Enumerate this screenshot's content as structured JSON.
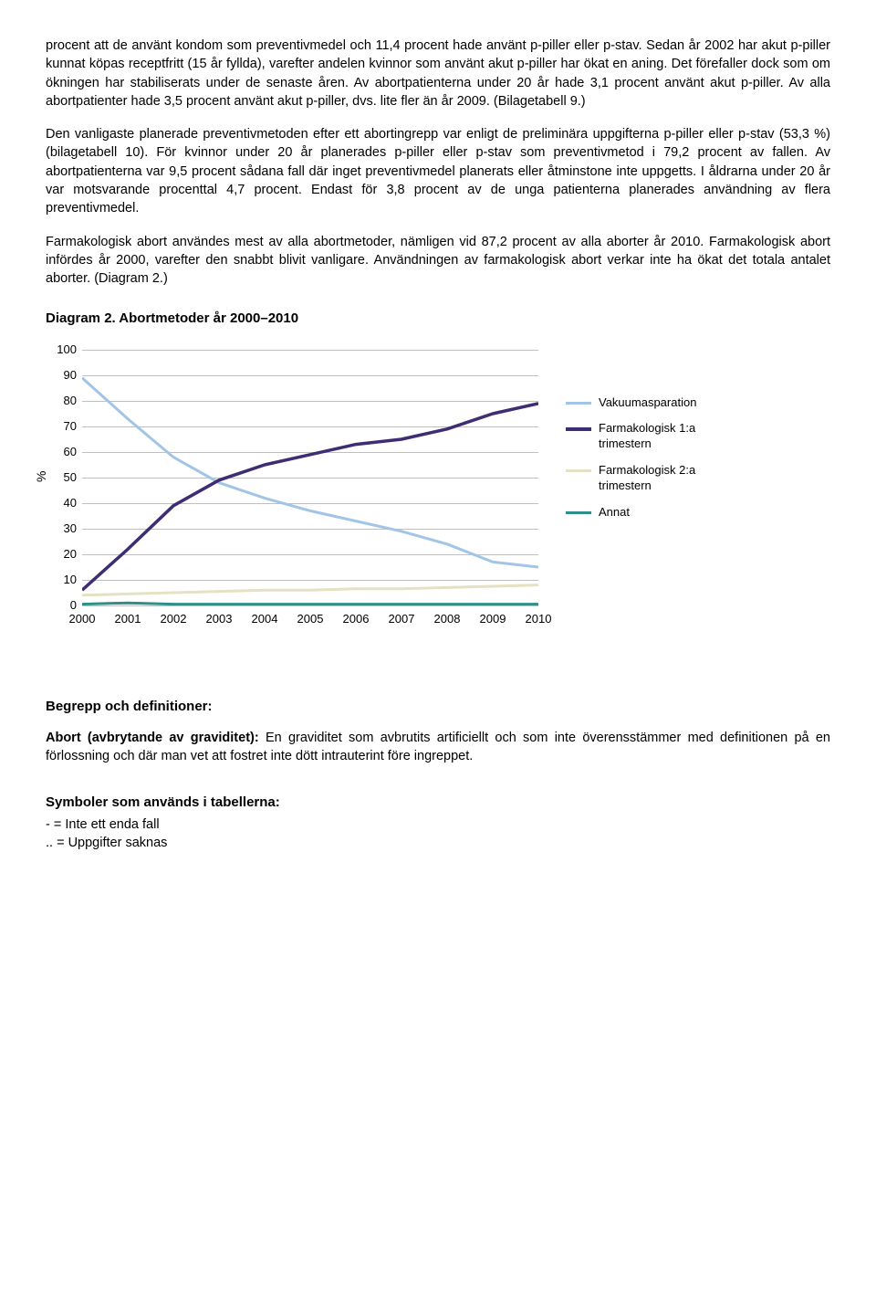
{
  "para1": "procent att de använt kondom som preventivmedel och 11,4 procent hade använt p-piller eller p-stav. Sedan år 2002 har akut p-piller kunnat köpas receptfritt (15 år fyllda), varefter andelen kvinnor som använt akut p-piller har ökat en aning. Det förefaller dock som om ökningen har stabiliserats under de senaste åren. Av abortpatienterna under 20 år hade 3,1 procent använt akut p-piller. Av alla abortpatienter hade 3,5 procent använt akut p-piller, dvs. lite fler än år 2009. (Bilagetabell 9.)",
  "para2": "Den vanligaste planerade preventivmetoden efter ett abortingrepp var enligt de preliminära uppgifterna p-piller eller p-stav (53,3 %) (bilagetabell 10). För kvinnor under 20 år planerades p-piller eller p-stav som preventivmetod i 79,2 procent av fallen. Av abortpatienterna var 9,5 procent sådana fall där inget preventivmedel planerats eller åtminstone inte uppgetts. I åldrarna under 20 år var motsvarande procenttal 4,7 procent. Endast för 3,8 procent av de unga patienterna planerades användning av flera preventivmedel.",
  "para3": "Farmakologisk abort användes mest av alla abortmetoder, nämligen vid 87,2 procent av alla aborter år 2010. Farmakologisk abort infördes år 2000, varefter den snabbt blivit vanligare. Användningen av farmakologisk abort verkar inte ha ökat det totala antalet aborter. (Diagram 2.)",
  "chart_title": "Diagram 2. Abortmetoder år 2000–2010",
  "chart": {
    "type": "line",
    "years": [
      "2000",
      "2001",
      "2002",
      "2003",
      "2004",
      "2005",
      "2006",
      "2007",
      "2008",
      "2009",
      "2010"
    ],
    "ylim": [
      0,
      100
    ],
    "ytick_step": 10,
    "ylabel": "%",
    "grid_color": "#bfbfbf",
    "series": [
      {
        "name": "Vakuumasparation",
        "color": "#a2c4e6",
        "width": 3,
        "values": [
          89,
          73,
          58,
          48,
          42,
          37,
          33,
          29,
          24,
          17,
          15
        ]
      },
      {
        "name": "Farmakologisk 1:a trimestern",
        "color": "#3e2d73",
        "width": 3.5,
        "values": [
          6,
          22,
          39,
          49,
          55,
          59,
          63,
          65,
          69,
          75,
          79
        ]
      },
      {
        "name": "Farmakologisk 2:a trimestern",
        "color": "#e4e2c3",
        "width": 3,
        "values": [
          4,
          4.5,
          5,
          5.5,
          6,
          6,
          6.5,
          6.5,
          7,
          7.5,
          8
        ]
      },
      {
        "name": "Annat",
        "color": "#2f8e8a",
        "width": 3,
        "values": [
          0.5,
          1,
          0.5,
          0.5,
          0.5,
          0.5,
          0.5,
          0.5,
          0.5,
          0.5,
          0.5
        ]
      }
    ]
  },
  "defs_heading": "Begrepp och definitioner:",
  "defs_para_bold": "Abort (avbrytande av graviditet):",
  "defs_para_rest": " En graviditet som avbrutits artificiellt och som inte överensstämmer med definitionen på en förlossning och där man vet att fostret inte dött intrauterint före ingreppet.",
  "symbols_heading": "Symboler som används i tabellerna:",
  "symbol1": "-   = Inte ett enda fall",
  "symbol2": "..  = Uppgifter saknas"
}
